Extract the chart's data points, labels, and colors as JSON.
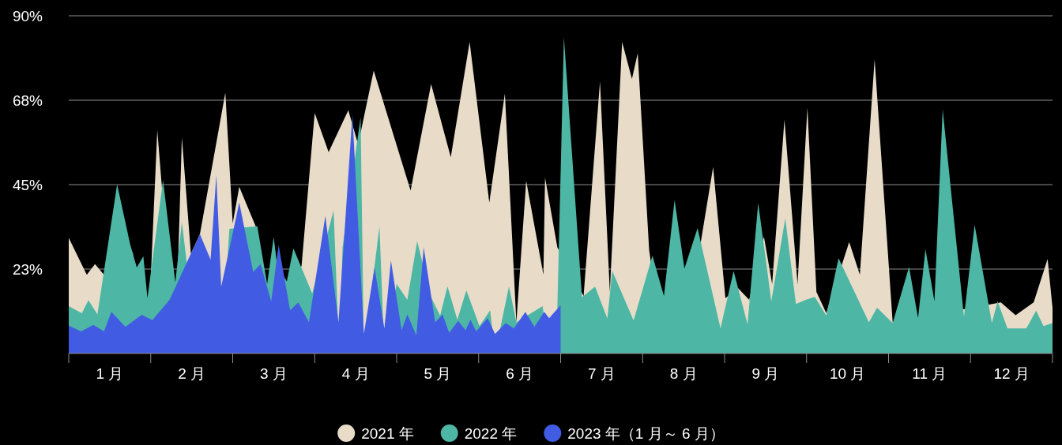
{
  "chart_data": {
    "type": "area",
    "xlim": [
      0,
      12
    ],
    "ylim": [
      0,
      90
    ],
    "grid": "y",
    "legend": "bottom",
    "xticks": [
      {
        "value": 0,
        "label": null
      },
      {
        "value": 0.5,
        "label": "1 月"
      },
      {
        "value": 1,
        "label": null
      },
      {
        "value": 1.5,
        "label": "2 月"
      },
      {
        "value": 2,
        "label": null
      },
      {
        "value": 2.5,
        "label": "3 月"
      },
      {
        "value": 3,
        "label": null
      },
      {
        "value": 3.5,
        "label": "4 月"
      },
      {
        "value": 4,
        "label": null
      },
      {
        "value": 4.5,
        "label": "5 月"
      },
      {
        "value": 5,
        "label": null
      },
      {
        "value": 5.5,
        "label": "6 月"
      },
      {
        "value": 6,
        "label": null
      },
      {
        "value": 6.5,
        "label": "7 月"
      },
      {
        "value": 7,
        "label": null
      },
      {
        "value": 7.5,
        "label": "8 月"
      },
      {
        "value": 8,
        "label": null
      },
      {
        "value": 8.5,
        "label": "9 月"
      },
      {
        "value": 9,
        "label": null
      },
      {
        "value": 9.5,
        "label": "10 月"
      },
      {
        "value": 10,
        "label": null
      },
      {
        "value": 10.5,
        "label": "11 月"
      },
      {
        "value": 11,
        "label": null
      },
      {
        "value": 11.5,
        "label": "12 月"
      },
      {
        "value": 12,
        "label": null
      }
    ],
    "yticks": [
      {
        "value": 22.5,
        "label": "23%"
      },
      {
        "value": 45,
        "label": "45%"
      },
      {
        "value": 67.5,
        "label": "68%"
      },
      {
        "value": 90,
        "label": "90%"
      }
    ],
    "series": [
      {
        "name": "2021 年",
        "color": "#e8dcc8",
        "x": [
          0,
          0.22,
          0.32,
          0.43,
          0.78,
          0.96,
          1.08,
          1.3,
          1.38,
          1.49,
          1.6,
          1.91,
          2.0,
          2.08,
          2.28,
          2.42,
          2.84,
          3.0,
          3.17,
          3.41,
          3.53,
          3.72,
          4.17,
          4.42,
          4.66,
          4.89,
          5.13,
          5.32,
          5.46,
          5.58,
          5.79,
          5.81,
          5.96,
          6.28,
          6.48,
          6.6,
          6.75,
          6.87,
          6.94,
          7.08,
          7.26,
          7.71,
          7.86,
          8.01,
          8.16,
          8.3,
          8.48,
          8.58,
          8.73,
          8.89,
          9.01,
          9.12,
          9.24,
          9.52,
          9.65,
          9.83,
          10.05,
          11.37,
          11.55,
          11.77,
          11.94,
          12.0
        ],
        "values": [
          30.8,
          21.0,
          23.8,
          21.0,
          27.0,
          null,
          59.5,
          null,
          57.6,
          26.6,
          31.8,
          69.5,
          34.7,
          44.4,
          33.9,
          null,
          23.4,
          64.1,
          53.7,
          64.8,
          55.7,
          75.4,
          43.4,
          71.8,
          52.3,
          83.0,
          40.2,
          69.3,
          8.3,
          46.0,
          21.0,
          46.9,
          28.3,
          15.3,
          72.5,
          16.4,
          83.0,
          73.2,
          80.0,
          27.5,
          null,
          29.7,
          49.7,
          14.7,
          17.5,
          14.3,
          31.1,
          18.5,
          62.3,
          18.5,
          65.5,
          16.4,
          10.8,
          29.7,
          21.0,
          78.4,
          8.3,
          13.6,
          10.2,
          13.6,
          25.2,
          12.2
        ]
      },
      {
        "name": "2022 年",
        "color": "#4db6a4",
        "x": [
          0,
          0.16,
          0.24,
          0.35,
          0.59,
          0.75,
          0.83,
          0.91,
          0.96,
          1.15,
          1.3,
          1.38,
          1.44,
          1.86,
          1.96,
          2.3,
          2.42,
          2.5,
          2.54,
          2.66,
          2.74,
          2.97,
          3.23,
          3.3,
          3.34,
          3.56,
          3.6,
          3.79,
          3.85,
          4.0,
          4.13,
          4.25,
          4.42,
          4.53,
          4.62,
          4.74,
          4.85,
          5.01,
          5.14,
          5.2,
          5.37,
          5.46,
          5.78,
          5.86,
          5.96,
          6.04,
          6.26,
          6.42,
          6.57,
          6.63,
          6.89,
          7.12,
          7.26,
          7.39,
          7.51,
          7.67,
          7.95,
          8.11,
          8.28,
          8.41,
          8.57,
          8.74,
          8.87,
          8.99,
          9.1,
          9.24,
          9.39,
          9.76,
          9.86,
          10.05,
          10.25,
          10.36,
          10.45,
          10.56,
          10.66,
          10.92,
          11.05,
          11.26,
          11.33,
          11.45,
          11.68,
          11.8,
          11.89,
          12.0
        ],
        "values": [
          12.6,
          10.7,
          14.2,
          10.4,
          45.1,
          29.0,
          22.9,
          25.9,
          14.7,
          46.2,
          18.9,
          35.0,
          24.1,
          null,
          33.2,
          33.9,
          18.5,
          31.0,
          23.8,
          19.2,
          28.0,
          16.0,
          38.1,
          null,
          28.3,
          63.0,
          null,
          33.9,
          null,
          18.5,
          14.3,
          29.9,
          15.0,
          10.1,
          17.9,
          9.0,
          16.8,
          7.3,
          11.5,
          null,
          17.9,
          8.3,
          12.6,
          null,
          12.0,
          84.4,
          15.0,
          17.8,
          9.3,
          22.0,
          8.8,
          26.1,
          15.3,
          40.9,
          22.6,
          33.4,
          6.7,
          22.0,
          7.8,
          40.1,
          13.9,
          36.0,
          13.2,
          14.3,
          15.1,
          10.1,
          25.4,
          8.3,
          12.2,
          8.1,
          23.1,
          9.4,
          27.8,
          13.9,
          65.1,
          9.7,
          34.3,
          8.1,
          13.9,
          6.7,
          6.7,
          11.4,
          7.3,
          8.1
        ]
      },
      {
        "name": "2023 年（1 月～ 6 月）",
        "color": "#415ce3",
        "x": [
          0,
          0.15,
          0.3,
          0.43,
          0.52,
          0.69,
          0.89,
          1.02,
          1.23,
          1.6,
          1.73,
          1.8,
          1.86,
          2.08,
          2.25,
          2.34,
          2.47,
          2.56,
          2.7,
          2.8,
          2.93,
          3.13,
          3.29,
          3.46,
          3.6,
          3.73,
          3.85,
          3.93,
          4.06,
          4.13,
          4.24,
          4.33,
          4.47,
          4.56,
          4.64,
          4.75,
          4.84,
          4.9,
          4.97,
          5.11,
          5.2,
          5.33,
          5.43,
          5.57,
          5.68,
          5.8,
          5.86,
          6.0
        ],
        "values": [
          7.4,
          5.9,
          7.6,
          5.9,
          11.1,
          7.1,
          10.3,
          8.9,
          14.3,
          31.8,
          25.0,
          47.6,
          17.8,
          40.2,
          21.7,
          23.8,
          13.9,
          28.9,
          11.5,
          13.6,
          8.3,
          36.7,
          8.3,
          63.7,
          5.2,
          22.9,
          6.6,
          24.8,
          6.2,
          10.4,
          4.8,
          28.3,
          8.3,
          10.4,
          5.5,
          8.7,
          6.2,
          9.0,
          5.9,
          9.4,
          5.2,
          8.1,
          6.7,
          11.1,
          7.1,
          11.1,
          9.4,
          12.9
        ]
      }
    ]
  }
}
